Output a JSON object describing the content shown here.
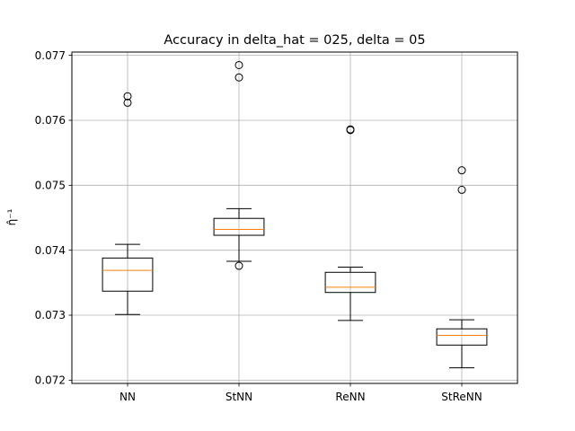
{
  "chart_data": {
    "type": "box",
    "title": "Accuracy in delta_hat = 025, delta = 05",
    "xlabel": "",
    "ylabel": "η̂⁻¹",
    "ylim": [
      0.07195,
      0.07705
    ],
    "yticks": [
      0.072,
      0.073,
      0.074,
      0.075,
      0.076,
      0.077
    ],
    "ytick_labels": [
      "0.072",
      "0.073",
      "0.074",
      "0.075",
      "0.076",
      "0.077"
    ],
    "categories": [
      "NN",
      "StNN",
      "ReNN",
      "StReNN"
    ],
    "grid": true,
    "colors": {
      "box": "#000000",
      "median": "#ff7f0e",
      "grid": "#b0b0b0"
    },
    "boxes": [
      {
        "label": "NN",
        "whisker_low": 0.07301,
        "q1": 0.07337,
        "median": 0.07369,
        "q3": 0.07388,
        "whisker_high": 0.07409,
        "fliers": [
          0.07627,
          0.07637
        ]
      },
      {
        "label": "StNN",
        "whisker_low": 0.07383,
        "q1": 0.07423,
        "median": 0.07432,
        "q3": 0.07449,
        "whisker_high": 0.07464,
        "fliers": [
          0.07376,
          0.07666,
          0.07685
        ]
      },
      {
        "label": "ReNN",
        "whisker_low": 0.07292,
        "q1": 0.07335,
        "median": 0.07343,
        "q3": 0.07366,
        "whisker_high": 0.07374,
        "fliers": [
          0.07585,
          0.07586
        ]
      },
      {
        "label": "StReNN",
        "whisker_low": 0.07219,
        "q1": 0.07254,
        "median": 0.07269,
        "q3": 0.07279,
        "whisker_high": 0.07293,
        "fliers": [
          0.07493,
          0.07523
        ]
      }
    ]
  }
}
